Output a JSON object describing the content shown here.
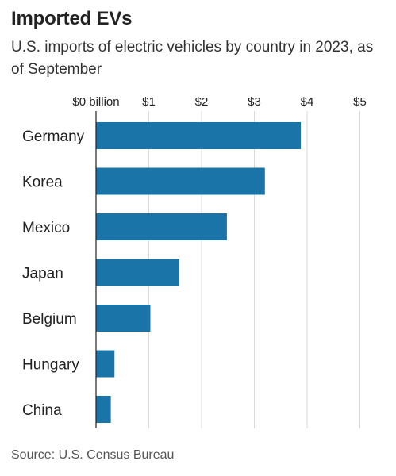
{
  "header": {
    "title": "Imported EVs",
    "subtitle": "U.S. imports of electric vehicles by country in 2023, as of September"
  },
  "footer": {
    "source": "Source: U.S. Census Bureau"
  },
  "colors": {
    "bar": "#1a74a8",
    "grid": "#d9d9d9",
    "axis": "#222222"
  },
  "chart_data": {
    "type": "bar",
    "orientation": "horizontal",
    "categories": [
      "Germany",
      "Korea",
      "Mexico",
      "Japan",
      "Belgium",
      "Hungary",
      "China"
    ],
    "values": [
      3.88,
      3.2,
      2.48,
      1.58,
      1.03,
      0.35,
      0.28
    ],
    "tick_values": [
      0,
      1,
      2,
      3,
      4,
      5
    ],
    "tick_labels": [
      "$0 billion",
      "$1",
      "$2",
      "$3",
      "$4",
      "$5"
    ],
    "xlim": [
      0,
      5
    ],
    "grid": true,
    "legend": "none"
  }
}
